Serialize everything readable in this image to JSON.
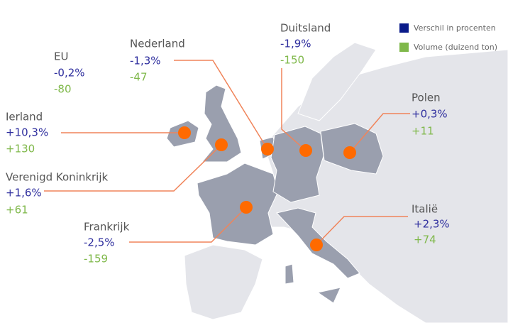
{
  "legend": [
    {
      "label": "Verschil in procenten"
    },
    {
      "label": "Volume (duizend ton)"
    }
  ],
  "regions": [
    {
      "name": "EU",
      "change": "-0,2%",
      "volume": "-80"
    },
    {
      "name": "Nederland",
      "change": "-1,3%",
      "volume": "-47"
    },
    {
      "name": "Duitsland",
      "change": "-1,9%",
      "volume": "-150"
    },
    {
      "name": "Polen",
      "change": "+0,3%",
      "volume": "+11"
    },
    {
      "name": "Ierland",
      "change": "+10,3%",
      "volume": "+130"
    },
    {
      "name": "Verenigd Koninkrijk",
      "change": "+1,6%",
      "volume": "+61"
    },
    {
      "name": "Frankrijk",
      "change": "-2,5%",
      "volume": "-159"
    },
    {
      "name": "Italië",
      "change": "+2,3%",
      "volume": "+74"
    }
  ]
}
